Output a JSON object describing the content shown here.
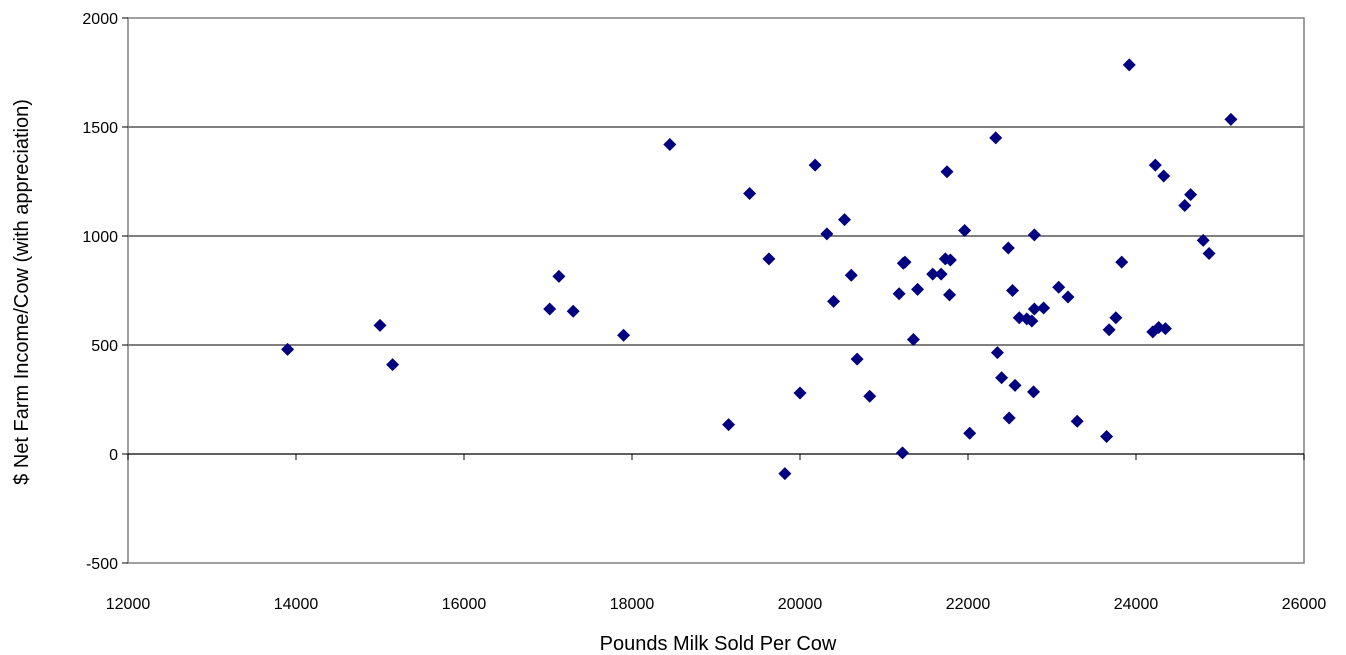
{
  "chart_data": {
    "type": "scatter",
    "title": "",
    "xlabel": "Pounds Milk Sold Per Cow",
    "ylabel": "$ Net Farm Income/Cow (with appreciation)",
    "xlim": [
      12000,
      26000
    ],
    "ylim": [
      -500,
      2000
    ],
    "xticks": [
      12000,
      14000,
      16000,
      18000,
      20000,
      22000,
      24000,
      26000
    ],
    "yticks": [
      -500,
      0,
      500,
      1000,
      1500,
      2000
    ],
    "horizontal_gridlines": true,
    "legend": "none",
    "marker": "diamond",
    "marker_color": "#000080",
    "series": [
      {
        "points": [
          [
            13900,
            480
          ],
          [
            15000,
            590
          ],
          [
            15150,
            410
          ],
          [
            17020,
            665
          ],
          [
            17130,
            815
          ],
          [
            17300,
            655
          ],
          [
            17900,
            545
          ],
          [
            18450,
            1420
          ],
          [
            19150,
            135
          ],
          [
            19400,
            1195
          ],
          [
            19630,
            895
          ],
          [
            19820,
            -90
          ],
          [
            20000,
            280
          ],
          [
            20180,
            1325
          ],
          [
            20320,
            1010
          ],
          [
            20400,
            700
          ],
          [
            20530,
            1075
          ],
          [
            20610,
            820
          ],
          [
            20680,
            435
          ],
          [
            20830,
            265
          ],
          [
            21180,
            735
          ],
          [
            21230,
            875
          ],
          [
            21250,
            880
          ],
          [
            21220,
            5
          ],
          [
            21350,
            525
          ],
          [
            21400,
            755
          ],
          [
            21580,
            825
          ],
          [
            21680,
            825
          ],
          [
            21730,
            895
          ],
          [
            21750,
            1295
          ],
          [
            21780,
            730
          ],
          [
            21790,
            890
          ],
          [
            21960,
            1025
          ],
          [
            22020,
            95
          ],
          [
            22330,
            1450
          ],
          [
            22350,
            465
          ],
          [
            22400,
            350
          ],
          [
            22480,
            945
          ],
          [
            22490,
            165
          ],
          [
            22530,
            750
          ],
          [
            22560,
            315
          ],
          [
            22610,
            625
          ],
          [
            22700,
            620
          ],
          [
            22760,
            610
          ],
          [
            22780,
            285
          ],
          [
            22790,
            1005
          ],
          [
            22790,
            665
          ],
          [
            22900,
            670
          ],
          [
            23080,
            765
          ],
          [
            23190,
            720
          ],
          [
            23300,
            150
          ],
          [
            23650,
            80
          ],
          [
            23680,
            570
          ],
          [
            23760,
            625
          ],
          [
            23830,
            880
          ],
          [
            23920,
            1785
          ],
          [
            24200,
            560
          ],
          [
            24230,
            1325
          ],
          [
            24270,
            580
          ],
          [
            24330,
            1275
          ],
          [
            24350,
            575
          ],
          [
            24580,
            1140
          ],
          [
            24650,
            1190
          ],
          [
            24800,
            980
          ],
          [
            24870,
            920
          ],
          [
            25130,
            1535
          ]
        ]
      }
    ]
  }
}
